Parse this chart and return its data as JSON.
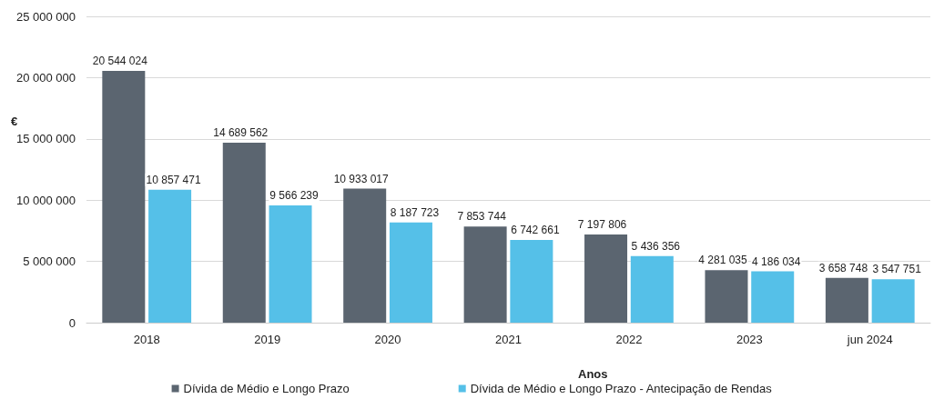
{
  "chart_data": {
    "type": "bar",
    "ylabel": "€",
    "xlabel": "Anos",
    "categories": [
      "2018",
      "2019",
      "2020",
      "2021",
      "2022",
      "2023",
      "jun 2024"
    ],
    "series": [
      {
        "name": "Dívida de Médio e Longo Prazo",
        "color": "#5b6570",
        "values": [
          20544024,
          14689562,
          10933017,
          7853744,
          7197806,
          4281035,
          3658748
        ],
        "value_labels": [
          "20 544 024",
          "14 689 562",
          "10 933 017",
          "7 853 744",
          "7 197 806",
          "4 281 035",
          "3 658 748"
        ]
      },
      {
        "name": "Dívida de Médio e Longo Prazo - Antecipação de Rendas",
        "color": "#55c0e8",
        "values": [
          10857471,
          9566239,
          8187723,
          6742661,
          5436356,
          4186034,
          3547751
        ],
        "value_labels": [
          "10 857 471",
          "9 566 239",
          "8 187 723",
          "6 742 661",
          "5 436 356",
          "4 186 034",
          "3 547 751"
        ]
      }
    ],
    "ylim": [
      0,
      25000000
    ],
    "yticks": [
      {
        "value": 0,
        "label": "0"
      },
      {
        "value": 5000000,
        "label": "5 000 000"
      },
      {
        "value": 10000000,
        "label": "10 000 000"
      },
      {
        "value": 15000000,
        "label": "15 000 000"
      },
      {
        "value": 20000000,
        "label": "20 000 000"
      },
      {
        "value": 25000000,
        "label": "25 000 000"
      }
    ],
    "grid": "y",
    "legend": "bottom"
  }
}
